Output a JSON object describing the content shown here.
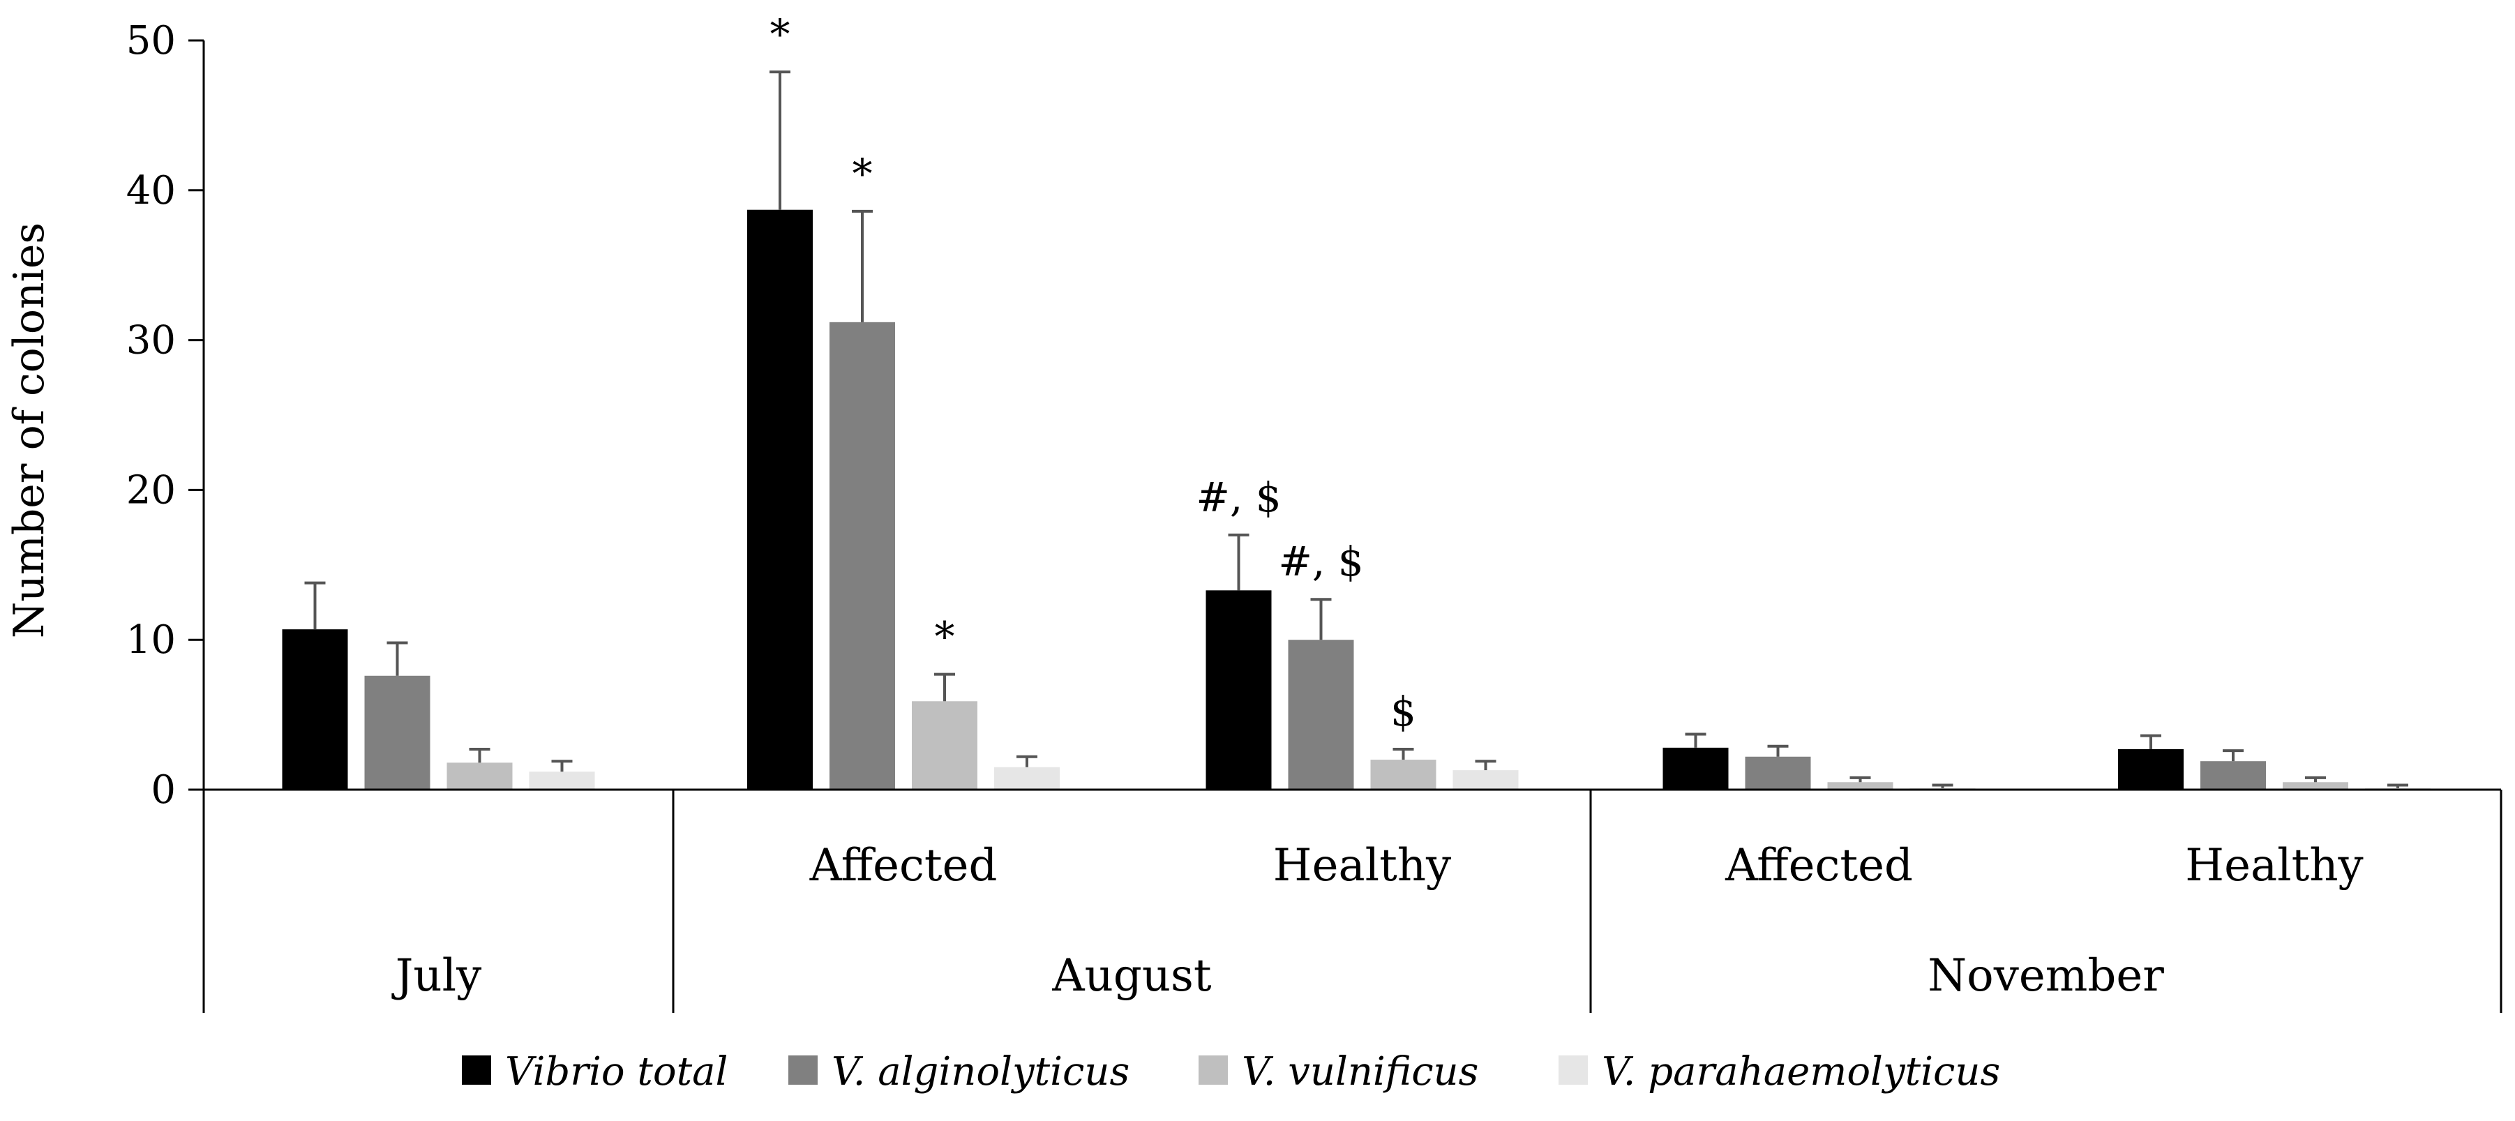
{
  "chart_data": {
    "type": "bar",
    "title": "",
    "xlabel": "",
    "ylabel": "Number of colonies",
    "ylim": [
      0,
      50
    ],
    "yticks": [
      0,
      10,
      20,
      30,
      40,
      50
    ],
    "grid": false,
    "legend_position": "bottom",
    "groups": [
      {
        "label": "July",
        "subgroups": [
          {
            "label": "",
            "category": "July"
          }
        ]
      },
      {
        "label": "August",
        "subgroups": [
          {
            "label": "Affected",
            "category": "August Affected"
          },
          {
            "label": "Healthy",
            "category": "August Healthy"
          }
        ]
      },
      {
        "label": "November",
        "subgroups": [
          {
            "label": "Affected",
            "category": "November Affected"
          },
          {
            "label": "Healthy",
            "category": "November Healthy"
          }
        ]
      }
    ],
    "categories": [
      "July",
      "August Affected",
      "August Healthy",
      "November Affected",
      "November Healthy"
    ],
    "series": [
      {
        "name": "Vibrio total",
        "color": "#000000",
        "values": [
          10.7,
          38.7,
          13.3,
          2.8,
          2.7
        ],
        "errors": [
          3.1,
          9.2,
          3.7,
          0.9,
          0.9
        ],
        "annotations": [
          "",
          "*",
          "#, $",
          "",
          ""
        ]
      },
      {
        "name": "V. alginolyticus",
        "color": "#808080",
        "values": [
          7.6,
          31.2,
          10.0,
          2.2,
          1.9
        ],
        "errors": [
          2.2,
          7.4,
          2.7,
          0.7,
          0.7
        ],
        "annotations": [
          "",
          "*",
          "#, $",
          "",
          ""
        ]
      },
      {
        "name": "V. vulnificus",
        "color": "#bfbfbf",
        "values": [
          1.8,
          5.9,
          2.0,
          0.5,
          0.5
        ],
        "errors": [
          0.9,
          1.8,
          0.7,
          0.3,
          0.3
        ],
        "annotations": [
          "",
          "*",
          "$",
          "",
          ""
        ]
      },
      {
        "name": "V. parahaemolyticus",
        "color": "#e6e6e6",
        "values": [
          1.2,
          1.5,
          1.3,
          0.1,
          0.1
        ],
        "errors": [
          0.7,
          0.7,
          0.6,
          0.2,
          0.2
        ],
        "annotations": [
          "",
          "",
          "",
          "",
          ""
        ]
      }
    ]
  }
}
